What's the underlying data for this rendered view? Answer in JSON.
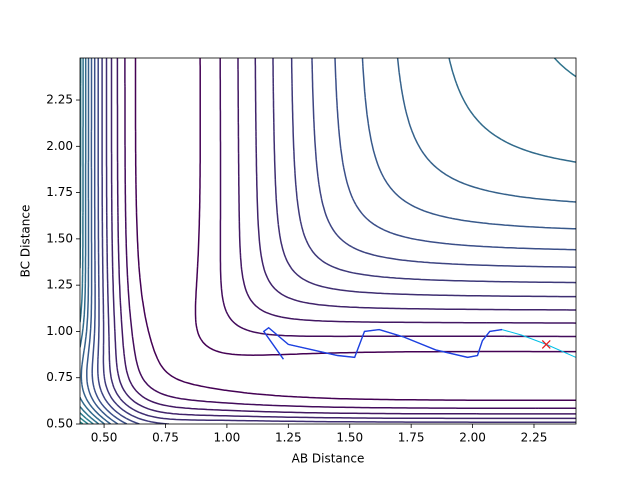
{
  "chart_data": {
    "type": "contour_trajectory",
    "xlabel": "AB Distance",
    "ylabel": "BC Distance",
    "xlim": [
      0.402,
      2.421
    ],
    "ylim": [
      0.5,
      2.477
    ],
    "xticks": [
      {
        "value": 0.5,
        "label": "0.50"
      },
      {
        "value": 0.75,
        "label": "0.75"
      },
      {
        "value": 1.0,
        "label": "1.00"
      },
      {
        "value": 1.25,
        "label": "1.25"
      },
      {
        "value": 1.5,
        "label": "1.50"
      },
      {
        "value": 1.75,
        "label": "1.75"
      },
      {
        "value": 2.0,
        "label": "2.00"
      },
      {
        "value": 2.25,
        "label": "2.25"
      }
    ],
    "yticks": [
      {
        "value": 0.5,
        "label": "0.50"
      },
      {
        "value": 0.75,
        "label": "0.75"
      },
      {
        "value": 1.0,
        "label": "1.00"
      },
      {
        "value": 1.25,
        "label": "1.25"
      },
      {
        "value": 1.5,
        "label": "1.50"
      },
      {
        "value": 1.75,
        "label": "1.75"
      },
      {
        "value": 2.0,
        "label": "2.00"
      },
      {
        "value": 2.25,
        "label": "2.25"
      }
    ],
    "series": [
      {
        "color": "#00bfe6",
        "x": [
          1.23,
          1.15,
          1.17,
          1.25,
          1.35,
          1.45,
          1.52,
          1.54,
          1.56,
          1.62,
          1.72,
          1.85,
          1.98,
          2.02,
          2.04,
          2.07,
          2.12,
          2.2,
          2.3,
          2.42
        ],
        "y": [
          0.85,
          1.0,
          1.02,
          0.93,
          0.9,
          0.87,
          0.86,
          0.93,
          1.0,
          1.01,
          0.97,
          0.9,
          0.86,
          0.87,
          0.95,
          1.0,
          1.01,
          0.98,
          0.93,
          0.86
        ]
      },
      {
        "color": "#1f3fe0",
        "x": [
          1.23,
          1.15,
          1.17,
          1.25,
          1.35,
          1.45,
          1.52,
          1.54,
          1.56,
          1.62,
          1.72,
          1.85,
          1.98,
          2.02,
          2.04,
          2.07,
          2.12
        ],
        "y": [
          0.85,
          1.0,
          1.02,
          0.93,
          0.9,
          0.87,
          0.86,
          0.93,
          1.0,
          1.01,
          0.97,
          0.9,
          0.86,
          0.87,
          0.95,
          1.0,
          1.01
        ]
      }
    ],
    "marker": {
      "x": 2.3,
      "y": 0.93,
      "color": "#e31a1c"
    }
  }
}
